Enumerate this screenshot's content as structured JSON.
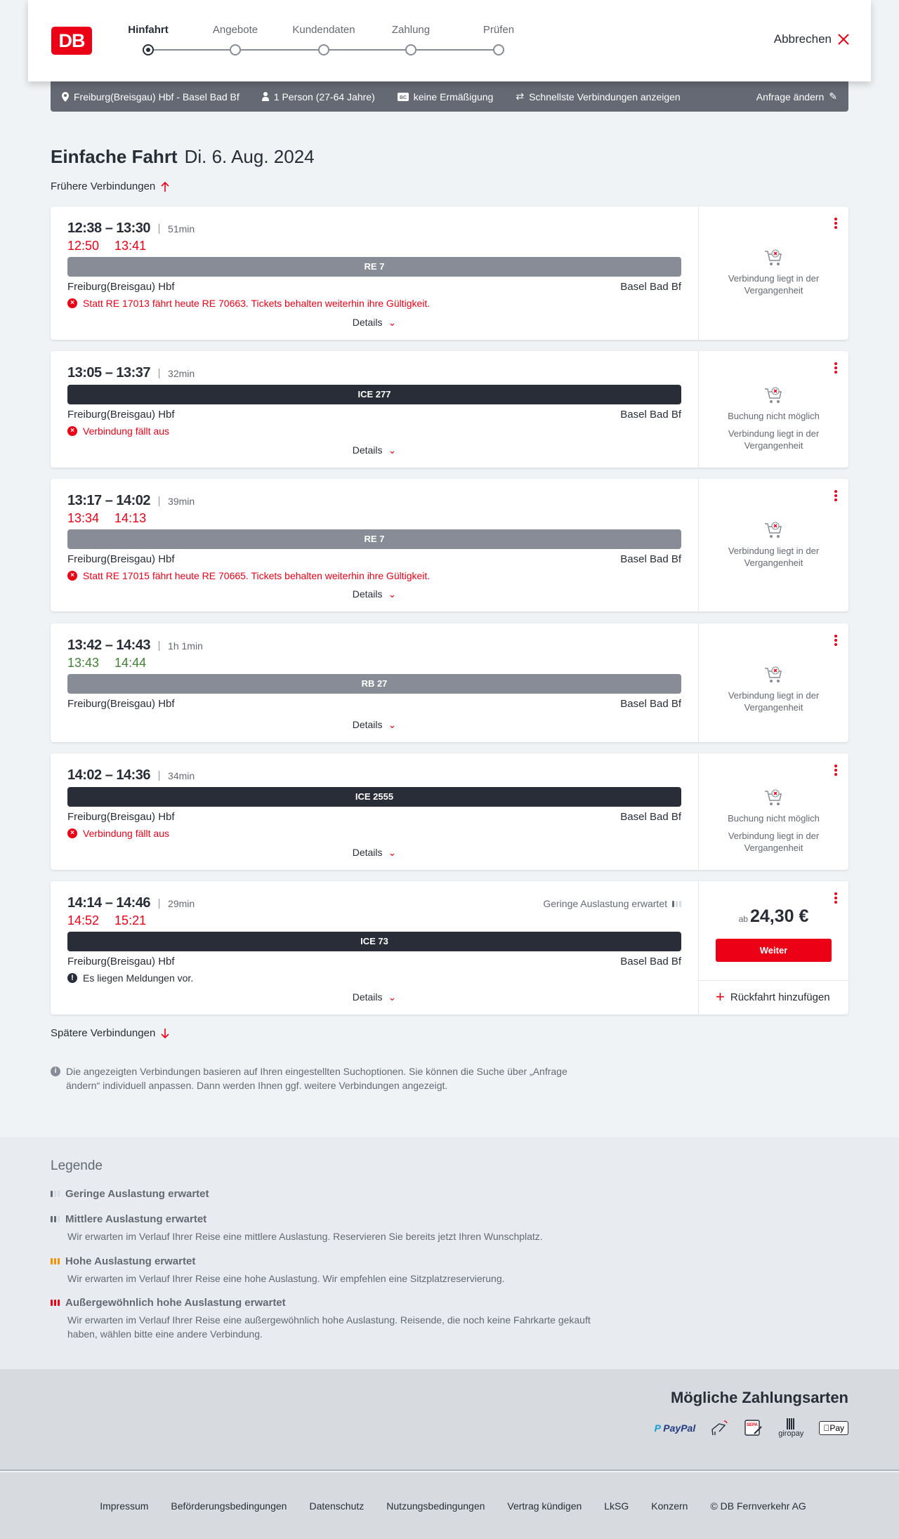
{
  "header": {
    "logo": "DB",
    "steps": [
      "Hinfahrt",
      "Angebote",
      "Kundendaten",
      "Zahlung",
      "Prüfen"
    ],
    "active_step": 0,
    "cancel": "Abbrechen"
  },
  "search": {
    "route": "Freiburg(Breisgau) Hbf - Basel Bad Bf",
    "persons": "1 Person (27-64 Jahre)",
    "discount": "keine Ermäßigung",
    "mode": "Schnellste Verbindungen anzeigen",
    "edit": "Anfrage ändern"
  },
  "page": {
    "title": "Einfache Fahrt",
    "date": "Di. 6. Aug. 2024",
    "earlier": "Frühere Verbindungen",
    "later": "Spätere Verbindungen",
    "info": "Die angezeigten Verbindungen basieren auf Ihren eingestellten Suchoptionen. Sie können die Suche über „Anfrage ändern“ individuell anpassen. Dann werden Ihnen ggf. weitere Verbindungen angezeigt."
  },
  "colors": {
    "brand": "#ec0016",
    "delay": "#ec0016",
    "ontime": "#408335",
    "regional": "#878c96",
    "longdistance": "#282d37"
  },
  "connections": [
    {
      "times": "12:38 – 13:30",
      "duration": "51min",
      "delay_dep": "12:50",
      "delay_arr": "13:41",
      "delay_color": "#ec0016",
      "train": "RE 7",
      "train_type": "regional",
      "from": "Freiburg(Breisgau) Hbf",
      "to": "Basel Bad Bf",
      "message": "Statt RE 17013 fährt heute RE 70663. Tickets behalten weiterhin ihre Gültigkeit.",
      "message_type": "error",
      "details": "Details",
      "status": [
        "Verbindung liegt in der Vergangenheit"
      ]
    },
    {
      "times": "13:05 – 13:37",
      "duration": "32min",
      "train": "ICE 277",
      "train_type": "longdistance",
      "from": "Freiburg(Breisgau) Hbf",
      "to": "Basel Bad Bf",
      "message": "Verbindung fällt aus",
      "message_type": "error",
      "details": "Details",
      "status": [
        "Buchung nicht möglich",
        "Verbindung liegt in der Vergangenheit"
      ]
    },
    {
      "times": "13:17 – 14:02",
      "duration": "39min",
      "delay_dep": "13:34",
      "delay_arr": "14:13",
      "delay_color": "#ec0016",
      "train": "RE 7",
      "train_type": "regional",
      "from": "Freiburg(Breisgau) Hbf",
      "to": "Basel Bad Bf",
      "message": "Statt RE 17015 fährt heute RE 70665. Tickets behalten weiterhin ihre Gültigkeit.",
      "message_type": "error",
      "details": "Details",
      "status": [
        "Verbindung liegt in der Vergangenheit"
      ]
    },
    {
      "times": "13:42 – 14:43",
      "duration": "1h 1min",
      "delay_dep": "13:43",
      "delay_arr": "14:44",
      "delay_color": "#408335",
      "train": "RB 27",
      "train_type": "regional",
      "from": "Freiburg(Breisgau) Hbf",
      "to": "Basel Bad Bf",
      "details": "Details",
      "status": [
        "Verbindung liegt in der Vergangenheit"
      ]
    },
    {
      "times": "14:02 – 14:36",
      "duration": "34min",
      "train": "ICE 2555",
      "train_type": "longdistance",
      "from": "Freiburg(Breisgau) Hbf",
      "to": "Basel Bad Bf",
      "message": "Verbindung fällt aus",
      "message_type": "error",
      "details": "Details",
      "status": [
        "Buchung nicht möglich",
        "Verbindung liegt in der Vergangenheit"
      ]
    },
    {
      "times": "14:14 – 14:46",
      "duration": "29min",
      "occupancy": "Geringe Auslastung erwartet",
      "delay_dep": "14:52",
      "delay_arr": "15:21",
      "delay_color": "#ec0016",
      "train": "ICE 73",
      "train_type": "longdistance",
      "from": "Freiburg(Breisgau) Hbf",
      "to": "Basel Bad Bf",
      "message": "Es liegen Meldungen vor.",
      "message_type": "info",
      "details": "Details",
      "price_prefix": "ab",
      "price": "24,30 €",
      "button": "Weiter",
      "return": "Rückfahrt hinzufügen"
    }
  ],
  "legend": {
    "title": "Legende",
    "items": [
      {
        "title": "Geringe Auslastung erwartet",
        "level": 1,
        "color": "#646973"
      },
      {
        "title": "Mittlere Auslastung erwartet",
        "level": 2,
        "color": "#646973",
        "text": "Wir erwarten im Verlauf Ihrer Reise eine mittlere Auslastung. Reservieren Sie bereits jetzt Ihren Wunschplatz."
      },
      {
        "title": "Hohe Auslastung erwartet",
        "level": 3,
        "color": "#f39200",
        "text": "Wir erwarten im Verlauf Ihrer Reise eine hohe Auslastung. Wir empfehlen eine Sitzplatzreservierung."
      },
      {
        "title": "Außergewöhnlich hohe Auslastung erwartet",
        "level": 4,
        "color": "#ec0016",
        "text": "Wir erwarten im Verlauf Ihrer Reise eine außergewöhnlich hohe Auslastung. Reisende, die noch keine Fahrkarte gekauft haben, wählen bitte eine andere Verbindung."
      }
    ]
  },
  "payment": {
    "title": "Mögliche Zahlungsarten",
    "methods": [
      "PayPal",
      "Kreditkarte",
      "SEPA",
      "giropay",
      "Apple Pay"
    ]
  },
  "footer": {
    "links": [
      "Impressum",
      "Beförderungsbedingungen",
      "Datenschutz",
      "Nutzungsbedingungen",
      "Vertrag kündigen",
      "LkSG",
      "Konzern",
      "© DB Fernverkehr AG"
    ]
  }
}
